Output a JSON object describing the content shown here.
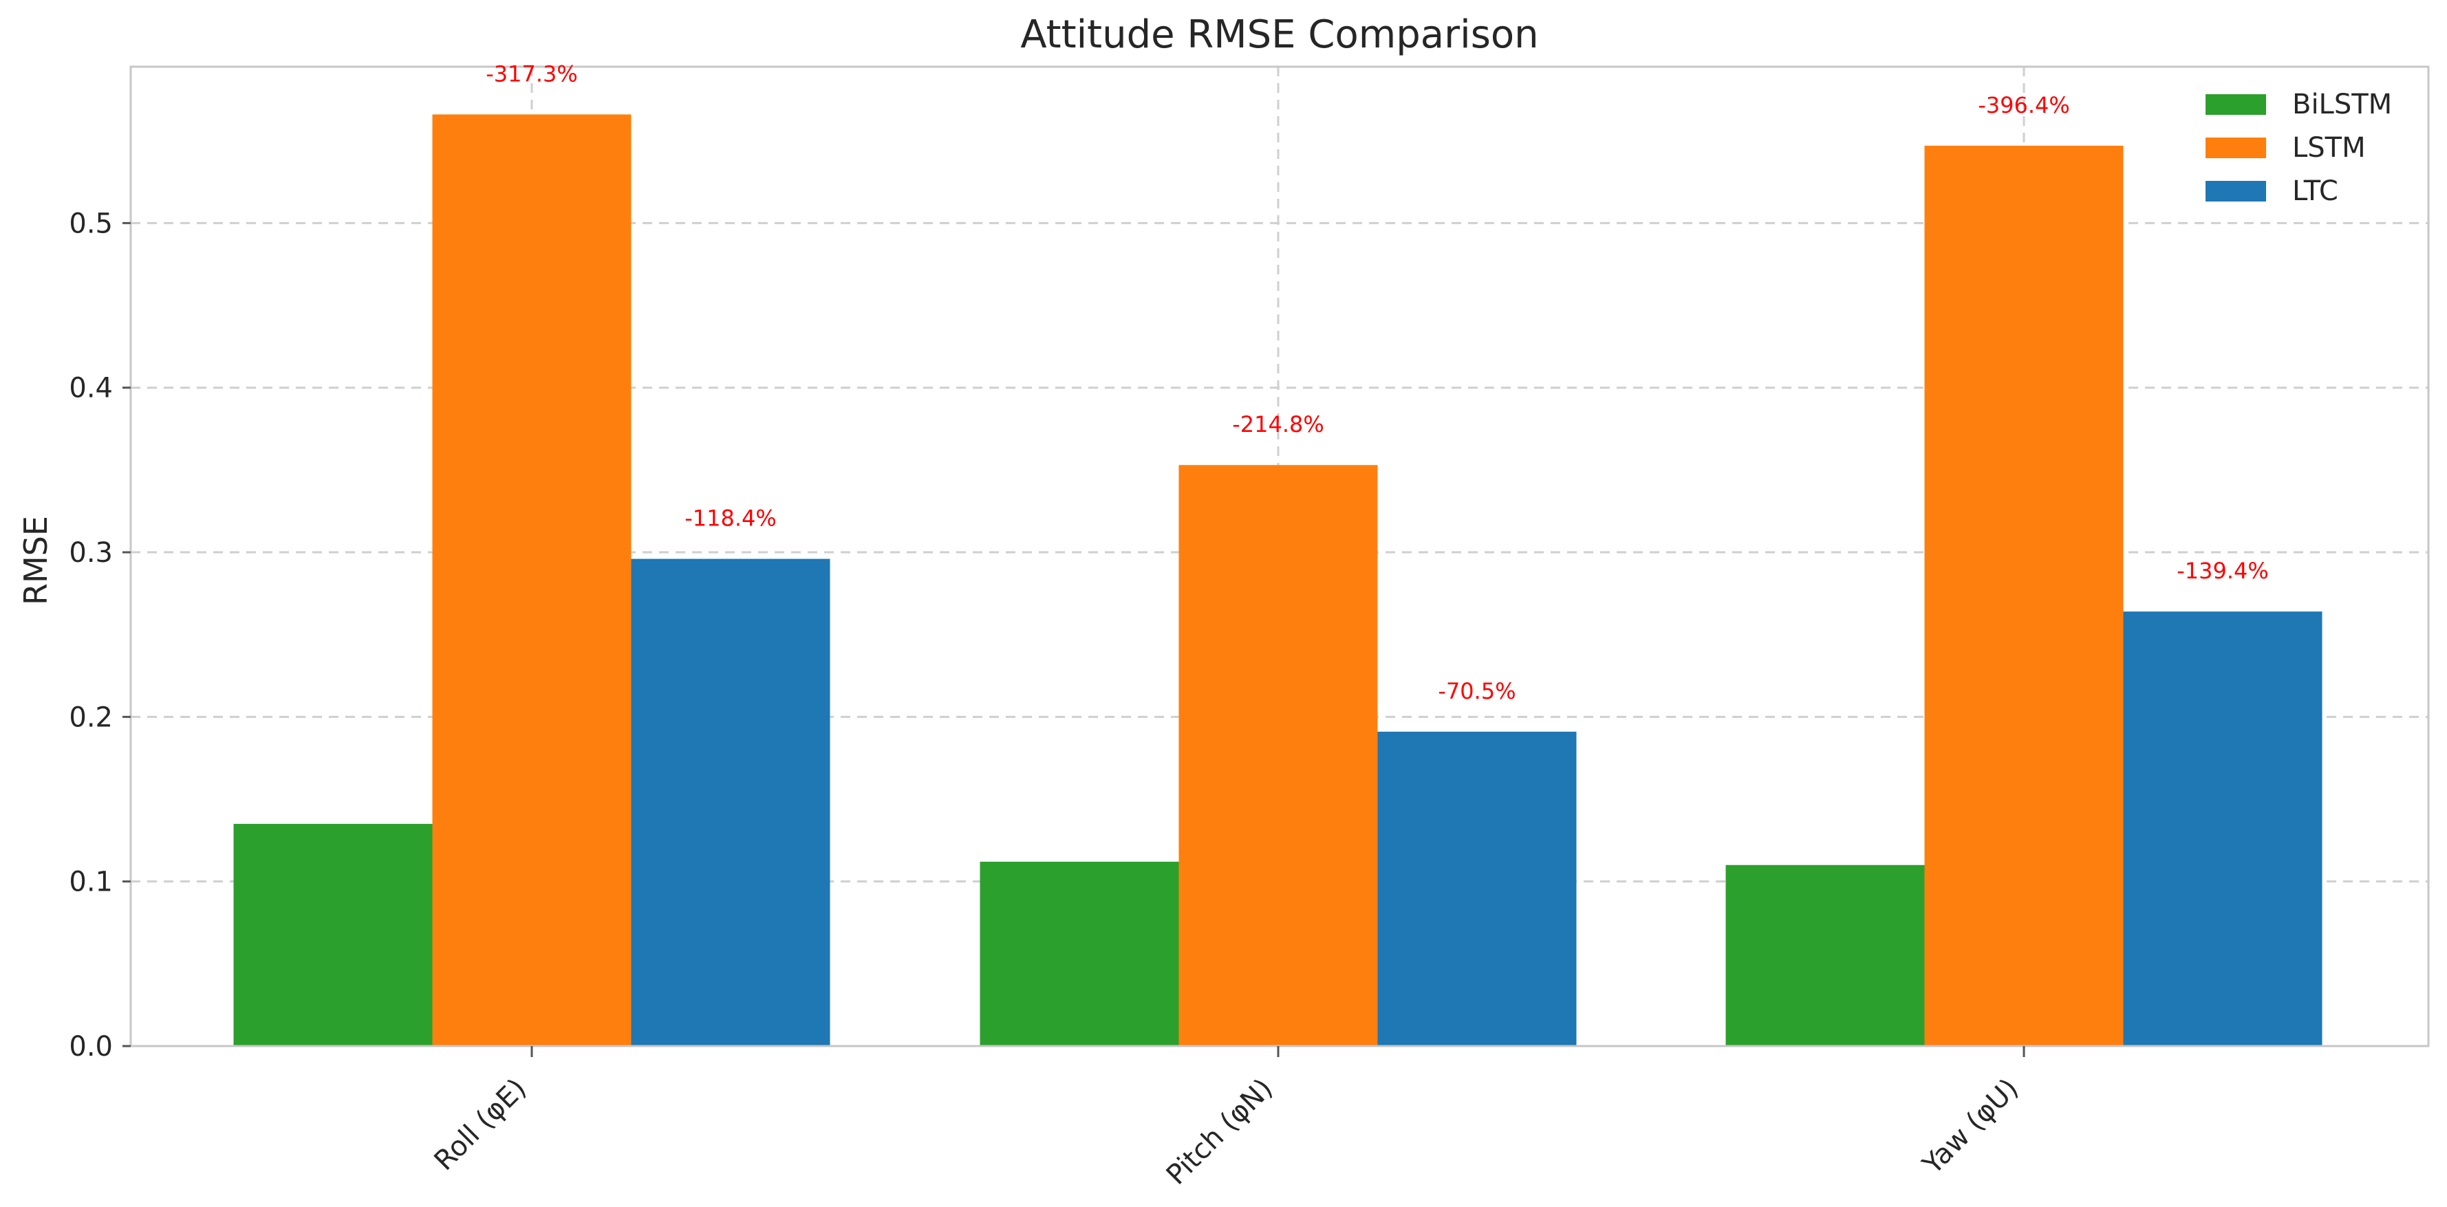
{
  "chart_data": {
    "type": "bar",
    "title": "Attitude RMSE Comparison",
    "xlabel": "",
    "ylabel": "RMSE",
    "categories": [
      "Roll (φE)",
      "Pitch (φN)",
      "Yaw (φU)"
    ],
    "series": [
      {
        "name": "BiLSTM",
        "color": "#2ca02c",
        "values": [
          0.135,
          0.112,
          0.11
        ]
      },
      {
        "name": "LSTM",
        "color": "#ff7f0e",
        "values": [
          0.566,
          0.353,
          0.547
        ]
      },
      {
        "name": "LTC",
        "color": "#1f77b4",
        "values": [
          0.296,
          0.191,
          0.264
        ]
      }
    ],
    "annotations": [
      {
        "series": "LSTM",
        "category": "Roll (φE)",
        "text": "-317.3%"
      },
      {
        "series": "LTC",
        "category": "Roll (φE)",
        "text": "-118.4%"
      },
      {
        "series": "LSTM",
        "category": "Pitch (φN)",
        "text": "-214.8%"
      },
      {
        "series": "LTC",
        "category": "Pitch (φN)",
        "text": "-70.5%"
      },
      {
        "series": "LSTM",
        "category": "Yaw (φU)",
        "text": "-396.4%"
      },
      {
        "series": "LTC",
        "category": "Yaw (φU)",
        "text": "-139.4%"
      }
    ],
    "annotation_color": "#ff0000",
    "ylim": [
      0,
      0.595
    ],
    "yticks": [
      0.0,
      0.1,
      0.2,
      0.3,
      0.4,
      0.5
    ],
    "ytick_labels": [
      "0.0",
      "0.1",
      "0.2",
      "0.3",
      "0.4",
      "0.5"
    ],
    "grid": true,
    "legend": {
      "placement": "top-right",
      "entries": [
        "BiLSTM",
        "LSTM",
        "LTC"
      ]
    }
  }
}
